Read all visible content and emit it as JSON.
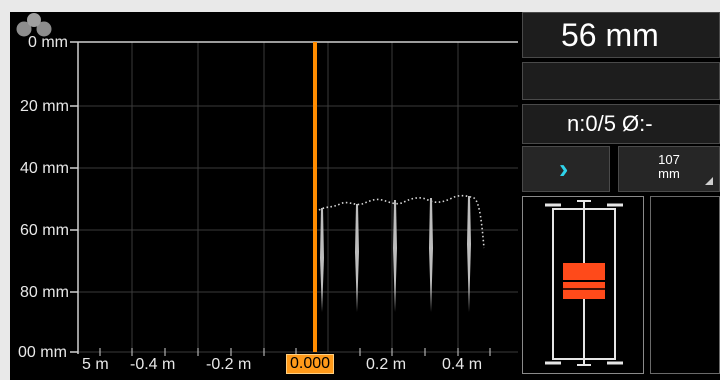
{
  "plot": {
    "y_labels": [
      "0 mm",
      "20 mm",
      "40 mm",
      "60 mm",
      "80 mm",
      "00 mm"
    ],
    "x_labels": [
      "5 m",
      "-0.4 m",
      "-0.2 m",
      "0.000",
      "0.2 m",
      "0.4 m"
    ],
    "cursor_label": "0.000",
    "cursor_color": "#ff8c00"
  },
  "panel": {
    "depth": "56 mm",
    "stats": "n:0/5  Ø:-",
    "next_icon": "chevron-right-icon",
    "range_value": "107",
    "range_unit": "mm"
  },
  "colors": {
    "background": "#000000",
    "grid": "#3a3a3a",
    "rebar_marker": "#ff4a1a",
    "accent": "#2fd3ea"
  }
}
